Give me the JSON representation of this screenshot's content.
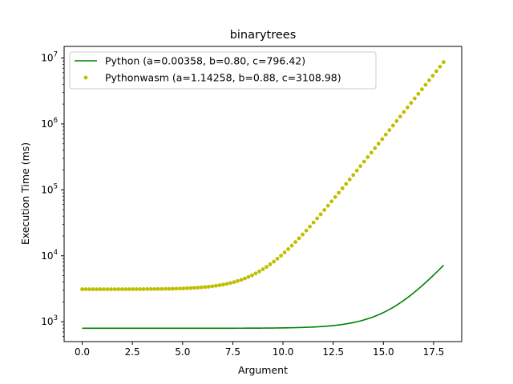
{
  "chart_data": {
    "type": "line",
    "title": "binarytrees",
    "xlabel": "Argument",
    "ylabel": "Execution Time (ms)",
    "xlim": [
      -0.9,
      18.9
    ],
    "ylim": [
      500,
      15000000
    ],
    "yscale": "log",
    "x_ticks": [
      0.0,
      2.5,
      5.0,
      7.5,
      10.0,
      12.5,
      15.0,
      17.5
    ],
    "x_tick_labels": [
      "0.0",
      "2.5",
      "5.0",
      "7.5",
      "10.0",
      "12.5",
      "15.0",
      "17.5"
    ],
    "y_ticks": [
      1000,
      10000,
      100000,
      1000000,
      10000000
    ],
    "y_tick_labels": [
      {
        "base": "10",
        "exp": "3"
      },
      {
        "base": "10",
        "exp": "4"
      },
      {
        "base": "10",
        "exp": "5"
      },
      {
        "base": "10",
        "exp": "6"
      },
      {
        "base": "10",
        "exp": "7"
      }
    ],
    "grid": false,
    "legend_position": "top-left",
    "series": [
      {
        "name": "Python (a=0.00358, b=0.80, c=796.42)",
        "style": "line",
        "color": "#008000",
        "model": {
          "a": 0.00358,
          "b": 0.8,
          "c": 796.42
        },
        "x_range": [
          0,
          18
        ],
        "points": 181
      },
      {
        "name": "Pythonwasm (a=1.14258, b=0.88, c=3108.98)",
        "style": "dots",
        "color": "#bfbf00",
        "model": {
          "a": 1.14258,
          "b": 0.88,
          "c": 3108.98
        },
        "x_range": [
          0,
          18
        ],
        "points": 101
      }
    ]
  }
}
